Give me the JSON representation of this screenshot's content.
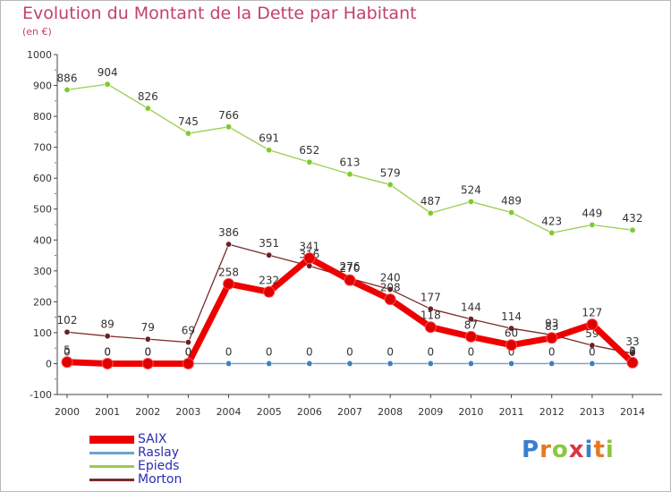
{
  "header": {
    "title": "Evolution du Montant de la Dette par Habitant",
    "subtitle": "(en €)"
  },
  "chart_data": {
    "type": "line",
    "title": "Evolution du Montant de la Dette par Habitant",
    "ylabel": "(en €)",
    "xlabel": "",
    "ylim": [
      -100,
      1000
    ],
    "yticks": [
      -100,
      0,
      100,
      200,
      300,
      400,
      500,
      600,
      700,
      800,
      900,
      1000
    ],
    "grid": false,
    "legend_position": "bottom-left",
    "x": [
      2000,
      2001,
      2002,
      2003,
      2004,
      2005,
      2006,
      2007,
      2008,
      2009,
      2010,
      2011,
      2012,
      2013,
      2014
    ],
    "series": [
      {
        "name": "Epieds",
        "color": "#9acd4c",
        "marker": "#7ecb2c",
        "values": [
          886,
          904,
          826,
          745,
          766,
          691,
          652,
          613,
          579,
          487,
          524,
          489,
          423,
          449,
          432
        ]
      },
      {
        "name": "Morton",
        "color": "#7b2b2b",
        "marker": "#6e1f1f",
        "values": [
          102,
          89,
          79,
          69,
          386,
          351,
          316,
          276,
          240,
          177,
          144,
          114,
          93,
          59,
          33
        ]
      },
      {
        "name": "Raslay",
        "color": "#6fa0cc",
        "marker": "#3d7fbf",
        "values": [
          0,
          0,
          0,
          0,
          0,
          0,
          0,
          0,
          0,
          0,
          0,
          0,
          0,
          0,
          0
        ]
      },
      {
        "name": "SAIX",
        "color": "#ee0000",
        "marker": "#e00000",
        "values": [
          5,
          0,
          0,
          0,
          258,
          232,
          341,
          270,
          208,
          118,
          87,
          60,
          83,
          127,
          3
        ]
      }
    ]
  },
  "legend": [
    {
      "name": "SAIX",
      "color": "#ee0000"
    },
    {
      "name": "Raslay",
      "color": "#6fa0cc"
    },
    {
      "name": "Epieds",
      "color": "#9acd4c"
    },
    {
      "name": "Morton",
      "color": "#7b2b2b"
    }
  ],
  "logo": {
    "letters": [
      "P",
      "r",
      "o",
      "x",
      "i",
      "t",
      "i"
    ],
    "colors": [
      "#3a7fd0",
      "#e7771f",
      "#8cc63f",
      "#d9363e",
      "#3a7fd0",
      "#e7771f",
      "#8cc63f"
    ]
  }
}
